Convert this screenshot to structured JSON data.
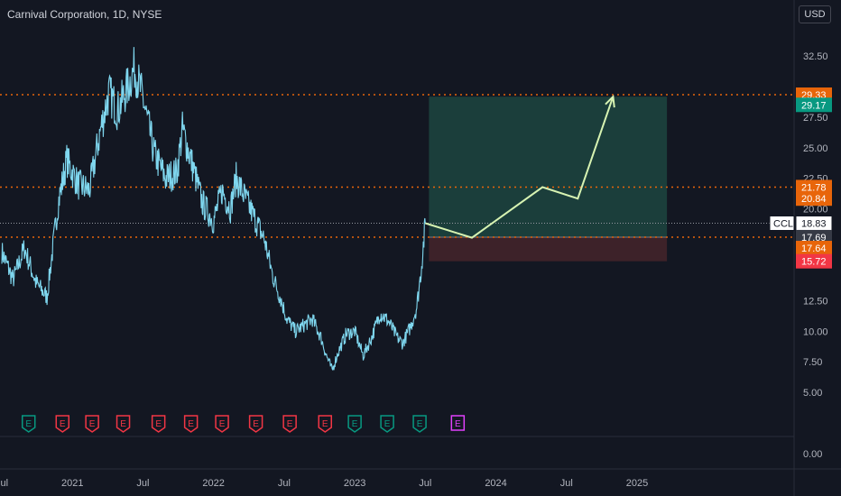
{
  "header": {
    "title": "Carnival Corporation, 1D, NYSE",
    "currency": "USD"
  },
  "chart_data": {
    "type": "line",
    "symbol": "CCL",
    "y_ticks": [
      "32.50",
      "27.50",
      "25.00",
      "22.50",
      "20.00",
      "12.50",
      "10.00",
      "7.50",
      "5.00",
      "0.00"
    ],
    "ylim": [
      0,
      32.5
    ],
    "x_ticks": [
      {
        "label": "Jul",
        "t": 2020.5
      },
      {
        "label": "2021",
        "t": 2021.0
      },
      {
        "label": "Jul",
        "t": 2021.5
      },
      {
        "label": "2022",
        "t": 2022.0
      },
      {
        "label": "Jul",
        "t": 2022.5
      },
      {
        "label": "2023",
        "t": 2023.0
      },
      {
        "label": "Jul",
        "t": 2023.5
      },
      {
        "label": "2024",
        "t": 2024.0
      },
      {
        "label": "Jul",
        "t": 2024.5
      },
      {
        "label": "2025",
        "t": 2025.0
      }
    ],
    "price_series": [
      [
        2020.5,
        16.5
      ],
      [
        2020.58,
        14.2
      ],
      [
        2020.66,
        16.8
      ],
      [
        2020.74,
        14.0
      ],
      [
        2020.82,
        12.8
      ],
      [
        2020.9,
        20.5
      ],
      [
        2020.96,
        24.0
      ],
      [
        2021.04,
        22.0
      ],
      [
        2021.12,
        21.5
      ],
      [
        2021.2,
        26.5
      ],
      [
        2021.26,
        29.5
      ],
      [
        2021.32,
        28.0
      ],
      [
        2021.4,
        30.2
      ],
      [
        2021.44,
        31.5
      ],
      [
        2021.5,
        29.0
      ],
      [
        2021.58,
        24.5
      ],
      [
        2021.66,
        22.5
      ],
      [
        2021.74,
        23.0
      ],
      [
        2021.78,
        26.5
      ],
      [
        2021.84,
        24.0
      ],
      [
        2021.92,
        20.5
      ],
      [
        2022.0,
        19.0
      ],
      [
        2022.06,
        21.5
      ],
      [
        2022.12,
        20.0
      ],
      [
        2022.16,
        22.5
      ],
      [
        2022.22,
        21.0
      ],
      [
        2022.28,
        19.5
      ],
      [
        2022.36,
        17.5
      ],
      [
        2022.42,
        14.5
      ],
      [
        2022.48,
        12.5
      ],
      [
        2022.52,
        11.0
      ],
      [
        2022.58,
        10.0
      ],
      [
        2022.64,
        10.5
      ],
      [
        2022.7,
        11.0
      ],
      [
        2022.76,
        9.5
      ],
      [
        2022.8,
        8.0
      ],
      [
        2022.84,
        6.8
      ],
      [
        2022.88,
        8.2
      ],
      [
        2022.94,
        9.8
      ],
      [
        2023.0,
        10.0
      ],
      [
        2023.06,
        8.0
      ],
      [
        2023.12,
        9.5
      ],
      [
        2023.18,
        11.5
      ],
      [
        2023.24,
        10.8
      ],
      [
        2023.3,
        9.5
      ],
      [
        2023.34,
        9.0
      ],
      [
        2023.4,
        10.5
      ],
      [
        2023.44,
        12.0
      ],
      [
        2023.47,
        15.0
      ],
      [
        2023.49,
        17.5
      ],
      [
        2023.5,
        18.83
      ]
    ],
    "projection_path": [
      [
        2023.5,
        18.83
      ],
      [
        2023.83,
        17.64
      ],
      [
        2024.33,
        21.78
      ],
      [
        2024.58,
        20.84
      ],
      [
        2024.83,
        29.17
      ]
    ],
    "position": {
      "entry": 17.69,
      "target": 29.17,
      "stop": 15.72,
      "start": 2023.5,
      "end": 2025.25,
      "profit_color": "#1b3e3b",
      "loss_color": "#3d2229"
    },
    "horizontal_lines": [
      29.33,
      21.78,
      17.69
    ],
    "current_price_line": 18.83,
    "price_labels": [
      {
        "value": "29.33",
        "y": 29.33,
        "color": "#e8650a"
      },
      {
        "value": "29.17",
        "y": 28.5,
        "color": "#089981"
      },
      {
        "value": "21.78",
        "y": 21.78,
        "color": "#e8650a"
      },
      {
        "value": "20.84",
        "y": 20.84,
        "color": "#e8650a"
      },
      {
        "value": "18.83",
        "y": 18.83,
        "color": "#ffffff"
      },
      {
        "value": "17.69",
        "y": 17.69,
        "color": "#363a45"
      },
      {
        "value": "17.64",
        "y": 16.8,
        "color": "#e8650a"
      },
      {
        "value": "15.72",
        "y": 15.72,
        "color": "#f23645"
      }
    ],
    "symbol_tag": "CCL",
    "earnings": [
      {
        "label": "E",
        "t": 2020.69,
        "kind": "positive"
      },
      {
        "label": "E",
        "t": 2020.93,
        "kind": "negative"
      },
      {
        "label": "E",
        "t": 2021.14,
        "kind": "negative"
      },
      {
        "label": "E",
        "t": 2021.36,
        "kind": "negative"
      },
      {
        "label": "E",
        "t": 2021.61,
        "kind": "negative"
      },
      {
        "label": "E",
        "t": 2021.84,
        "kind": "negative"
      },
      {
        "label": "E",
        "t": 2022.06,
        "kind": "negative"
      },
      {
        "label": "E",
        "t": 2022.3,
        "kind": "negative"
      },
      {
        "label": "E",
        "t": 2022.54,
        "kind": "negative"
      },
      {
        "label": "E",
        "t": 2022.79,
        "kind": "negative"
      },
      {
        "label": "E",
        "t": 2023.0,
        "kind": "positive"
      },
      {
        "label": "E",
        "t": 2023.23,
        "kind": "positive"
      },
      {
        "label": "E",
        "t": 2023.46,
        "kind": "positive"
      },
      {
        "label": "E",
        "t": 2023.73,
        "kind": "upcoming"
      }
    ],
    "colors": {
      "price": "#7fd7ef",
      "projection": "#d7f3b2",
      "dotted": "#e8650a",
      "grid": "#2a2e39",
      "axis_text": "#b2b5be",
      "positive": "#089981",
      "negative": "#f23645",
      "upcoming": "#e040fb"
    }
  }
}
